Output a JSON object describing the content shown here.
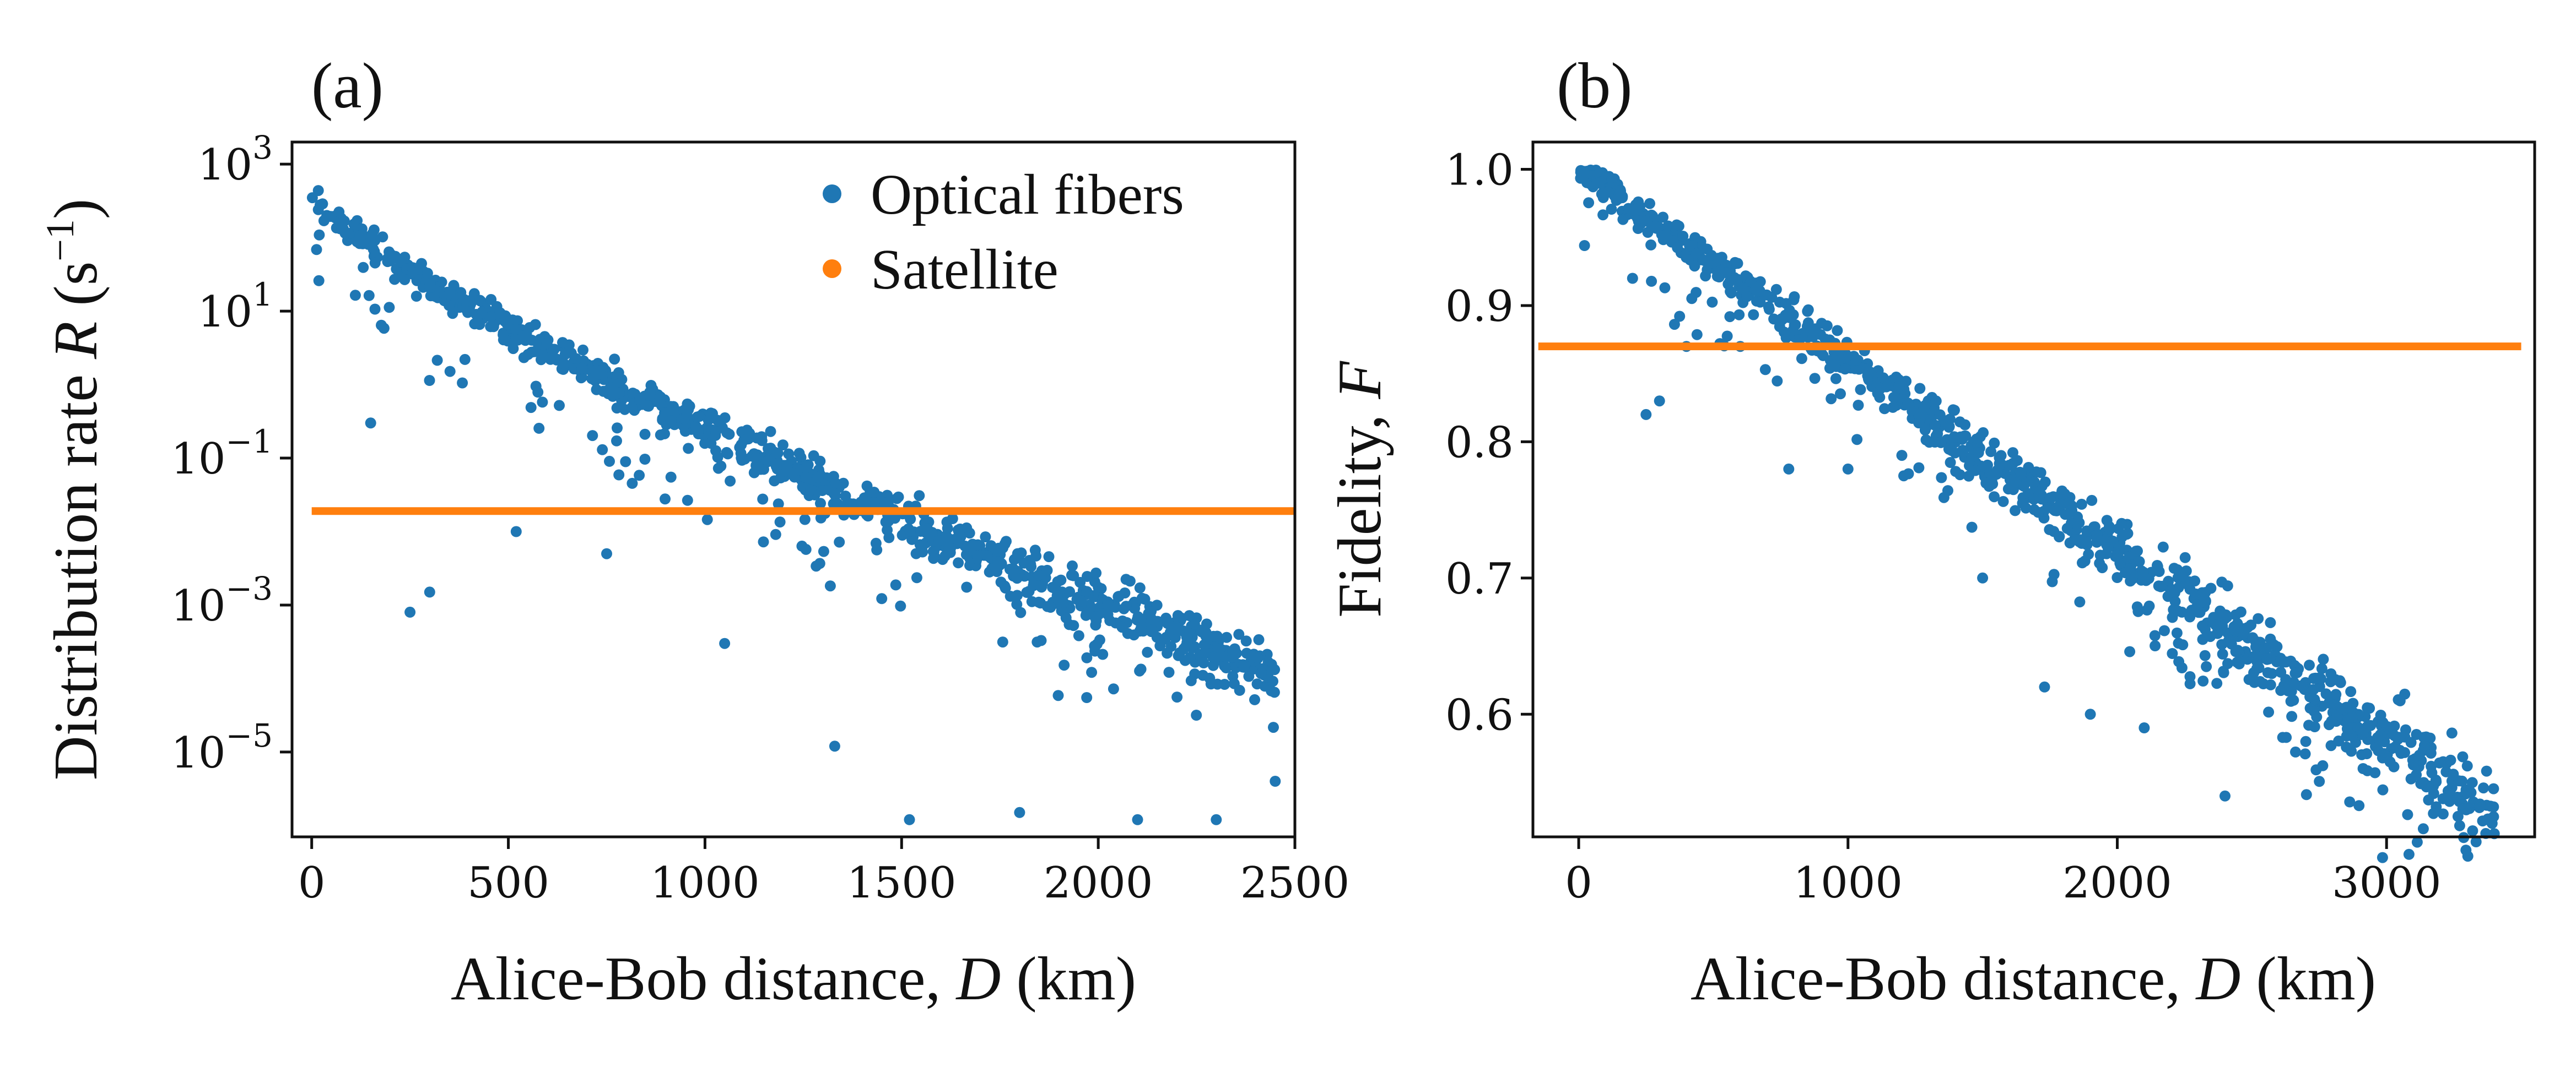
{
  "figure": {
    "colors": {
      "fibers": "#1f77b4",
      "satellite": "#ff7f0e",
      "axes": "#111111"
    }
  },
  "chart_data": [
    {
      "panel": "(a)",
      "type": "scatter",
      "title": "",
      "xlabel": "Alice-Bob distance, D (km)",
      "xlabel_parts": [
        "Alice-Bob distance, ",
        "D",
        " (km)"
      ],
      "ylabel": "Distribution rate R (s−1)",
      "ylabel_parts": [
        "Distribution rate ",
        "R",
        " (s",
        "−1",
        ")"
      ],
      "yscale": "log",
      "xlim": [
        -50,
        2500
      ],
      "ylim": [
        7e-07,
        2000
      ],
      "xticks": [
        0,
        500,
        1000,
        1500,
        2000,
        2500
      ],
      "xtick_labels": [
        "0",
        "500",
        "1000",
        "1500",
        "2000",
        "2500"
      ],
      "yticks": [
        {
          "base": "10",
          "exp": "3",
          "value": 1000
        },
        {
          "base": "10",
          "exp": "1",
          "value": 10
        },
        {
          "base": "10",
          "exp": "−1",
          "value": 0.1
        },
        {
          "base": "10",
          "exp": "−3",
          "value": 0.001
        },
        {
          "base": "10",
          "exp": "−5",
          "value": 1e-05
        }
      ],
      "legend": {
        "position": "top-right",
        "entries": [
          "Optical fibers",
          "Satellite"
        ]
      },
      "series": [
        {
          "name": "Optical fibers",
          "kind": "scatter",
          "model": {
            "form": "R = 400 * 10^(-3.2 * (D/1000)^0.8)",
            "d_range": [
              0,
              2450
            ],
            "n_points": 1000,
            "scatter_dex": 0.35
          },
          "outliers": [
            [
              150,
              0.3
            ],
            [
              250,
              0.0008
            ],
            [
              300,
              0.0015
            ],
            [
              520,
              0.01
            ],
            [
              750,
              0.005
            ],
            [
              1050,
              0.0003
            ],
            [
              1330,
              1.2e-05
            ],
            [
              1520,
              1.2e-06
            ],
            [
              1800,
              1.5e-06
            ],
            [
              2100,
              1.2e-06
            ],
            [
              2300,
              1.2e-06
            ],
            [
              2450,
              4e-06
            ]
          ]
        },
        {
          "name": "Satellite",
          "kind": "line",
          "x": [
            0,
            2500
          ],
          "values": [
            0.019,
            0.019
          ]
        }
      ]
    },
    {
      "panel": "(b)",
      "type": "scatter",
      "title": "",
      "xlabel": "Alice-Bob distance, D (km)",
      "xlabel_parts": [
        "Alice-Bob distance, ",
        "D",
        " (km)"
      ],
      "ylabel": "Fidelity, F",
      "ylabel_parts": [
        "Fidelity, ",
        "F"
      ],
      "yscale": "linear",
      "xlim": [
        -170,
        3550
      ],
      "ylim": [
        0.51,
        1.02
      ],
      "xticks": [
        0,
        1000,
        2000,
        3000
      ],
      "xtick_labels": [
        "0",
        "1000",
        "2000",
        "3000"
      ],
      "yticks": [
        {
          "label": "1.0",
          "value": 1.0
        },
        {
          "label": "0.9",
          "value": 0.9
        },
        {
          "label": "0.8",
          "value": 0.8
        },
        {
          "label": "0.7",
          "value": 0.7
        },
        {
          "label": "0.6",
          "value": 0.6
        }
      ],
      "series": [
        {
          "name": "Optical fibers",
          "kind": "scatter",
          "model": {
            "form": "F = 1.0 - 0.14 * (D/1000)",
            "d_range": [
              0,
              3400
            ],
            "n_points": 1000,
            "scatter_sd": 0.012
          },
          "outliers": [
            [
              200,
              0.92
            ],
            [
              250,
              0.82
            ],
            [
              300,
              0.83
            ],
            [
              400,
              0.87
            ],
            [
              600,
              0.87
            ],
            [
              780,
              0.78
            ],
            [
              1000,
              0.78
            ],
            [
              1200,
              0.79
            ],
            [
              1500,
              0.7
            ],
            [
              1730,
              0.62
            ],
            [
              1900,
              0.6
            ],
            [
              2100,
              0.59
            ],
            [
              2400,
              0.54
            ],
            [
              2700,
              0.58
            ]
          ]
        },
        {
          "name": "Satellite",
          "kind": "line",
          "x": [
            -150,
            3500
          ],
          "values": [
            0.87,
            0.87
          ]
        }
      ]
    }
  ]
}
